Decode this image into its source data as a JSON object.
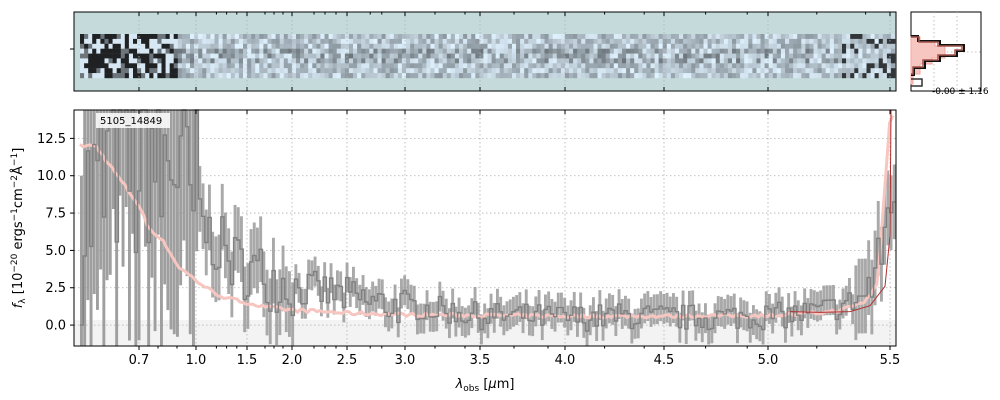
{
  "chart_data": {
    "type": "line",
    "object_id": "5105_14849",
    "xlabel": "λ_obs [μm]",
    "ylabel": "f_λ [10^-20 ergs^-1cm^-2Å^-1]",
    "x_axis_scale": "nonlinear (pixel/dispersion scale)",
    "x_tick_labels": [
      "0.7",
      "1.0",
      "1.5",
      "2.0",
      "2.5",
      "3.0",
      "3.5",
      "4.0",
      "4.5",
      "5.0",
      "5.5"
    ],
    "y_tick_labels": [
      "0.0",
      "2.5",
      "5.0",
      "7.5",
      "10.0",
      "12.5"
    ],
    "ylim": [
      -1.4,
      14.4
    ],
    "grid": true,
    "inset_label": "-0.00 ± 1.16",
    "colors": {
      "data": "#808080",
      "model": "#f4a6a0",
      "model_line": "#b03030",
      "image_bg": "#c5dbdb"
    },
    "series": [
      {
        "x": [
          0.6,
          0.65,
          0.7,
          0.75,
          0.8,
          0.85,
          0.9,
          0.95,
          1.0,
          1.1,
          1.2,
          1.3,
          1.4,
          1.5,
          1.7,
          1.9,
          2.1,
          2.3,
          2.5,
          2.7,
          2.9,
          3.1,
          3.3,
          3.5,
          3.7,
          3.9,
          4.1,
          4.3,
          4.5,
          4.7,
          4.9,
          5.0,
          5.1,
          5.2,
          5.3,
          5.4,
          5.45,
          5.5
        ],
        "values": [
          8,
          12,
          10,
          13,
          9,
          11,
          12,
          7,
          8,
          6,
          5.5,
          4.5,
          4,
          3.8,
          3.2,
          2.8,
          2.4,
          2.2,
          1.9,
          1.5,
          1.3,
          1.2,
          0.9,
          0.6,
          0.6,
          0.5,
          0.5,
          0.6,
          0.5,
          0.5,
          0.6,
          0.6,
          0.7,
          0.9,
          1.3,
          2.0,
          4.0,
          9.0
        ]
      },
      {
        "x": [
          0.6,
          0.65,
          0.7,
          0.75,
          0.8,
          0.85,
          0.9,
          1.0,
          1.1,
          1.2,
          1.3,
          1.5,
          1.7,
          2.0,
          2.3,
          2.5,
          2.8,
          3.0,
          3.5,
          4.0,
          4.5,
          5.0,
          5.1,
          5.2,
          5.3,
          5.4,
          5.45,
          5.5
        ],
        "values": [
          12,
          10,
          8,
          6.5,
          6,
          5.2,
          4,
          3,
          2.5,
          2.1,
          1.8,
          1.5,
          1.2,
          1.0,
          0.9,
          0.8,
          0.75,
          0.7,
          0.65,
          0.6,
          0.6,
          0.65,
          0.7,
          0.8,
          1.0,
          1.6,
          2.8,
          14
        ]
      }
    ]
  }
}
